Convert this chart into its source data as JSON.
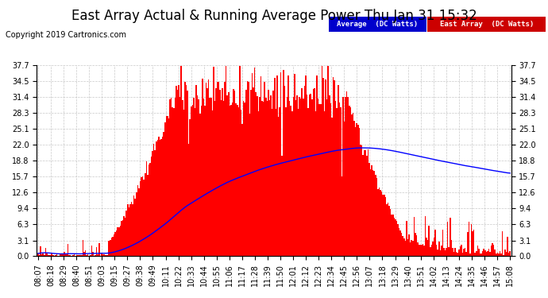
{
  "title": "East Array Actual & Running Average Power Thu Jan 31 15:32",
  "copyright": "Copyright 2019 Cartronics.com",
  "yticks": [
    0.0,
    3.1,
    6.3,
    9.4,
    12.6,
    15.7,
    18.8,
    22.0,
    25.1,
    28.3,
    31.4,
    34.5,
    37.7
  ],
  "ymax": 37.7,
  "bar_color": "#FF0000",
  "avg_line_color": "#0000FF",
  "background_color": "#FFFFFF",
  "plot_bg_color": "#FFFFFF",
  "grid_color": "#BBBBBB",
  "legend_avg_bg": "#0000CC",
  "legend_east_bg": "#CC0000",
  "legend_avg_text": "Average  (DC Watts)",
  "legend_east_text": "East Array  (DC Watts)",
  "title_fontsize": 12,
  "copyright_fontsize": 7,
  "tick_fontsize": 7,
  "xtick_labels": [
    "08:07",
    "08:18",
    "08:29",
    "08:40",
    "08:51",
    "09:03",
    "09:15",
    "09:27",
    "09:38",
    "09:49",
    "10:11",
    "10:22",
    "10:33",
    "10:44",
    "10:55",
    "11:06",
    "11:17",
    "11:28",
    "11:39",
    "11:50",
    "12:01",
    "12:12",
    "12:23",
    "12:34",
    "12:45",
    "12:56",
    "13:07",
    "13:18",
    "13:29",
    "13:40",
    "13:51",
    "14:02",
    "14:13",
    "14:24",
    "14:35",
    "14:46",
    "14:57",
    "15:08"
  ],
  "n_points": 380
}
